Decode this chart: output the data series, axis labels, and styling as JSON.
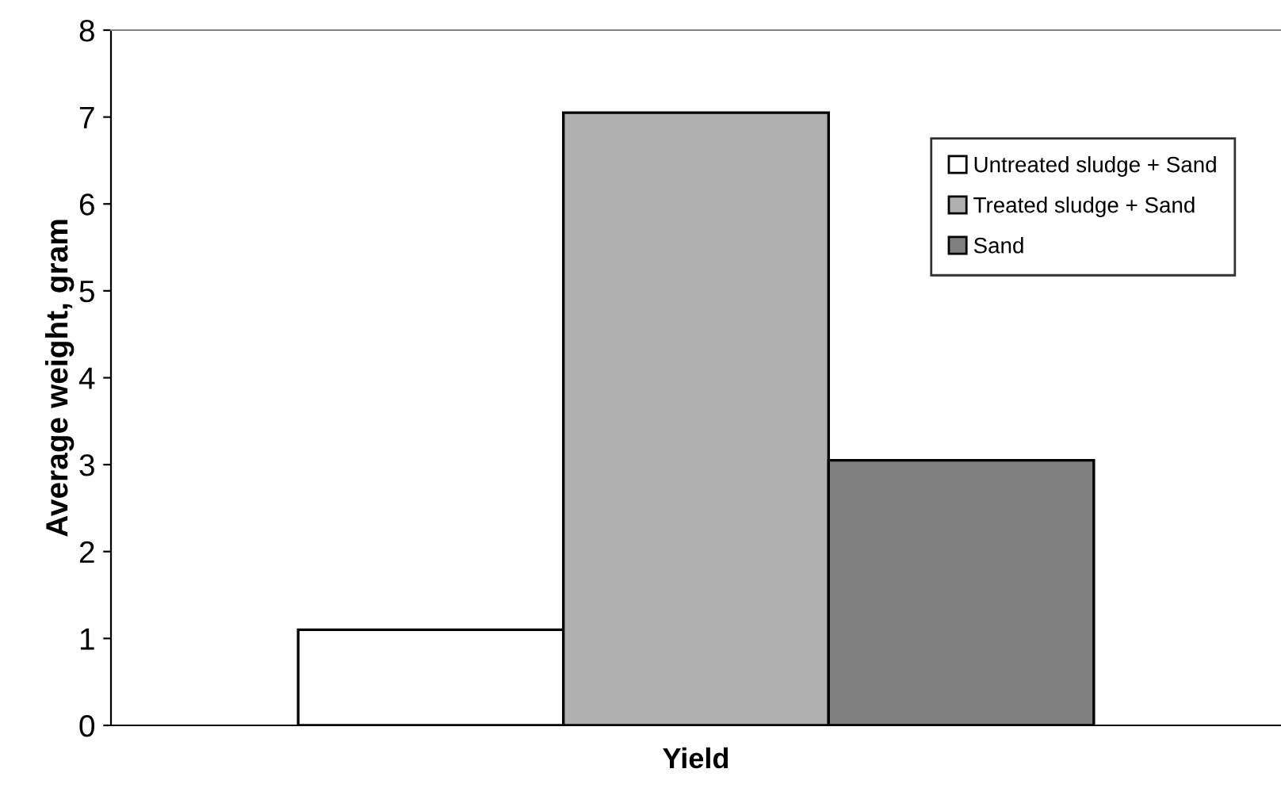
{
  "chart_data": {
    "type": "bar",
    "categories": [
      "Yield"
    ],
    "ylabel": "Average weight, gram",
    "ylim": [
      0,
      8
    ],
    "yticks": [
      0,
      1,
      2,
      3,
      4,
      5,
      6,
      7,
      8
    ],
    "grid": false,
    "legend": "top right",
    "series": [
      {
        "name": "Untreated sludge + Sand",
        "color": "#ffffff",
        "values": [
          1.1
        ]
      },
      {
        "name": "Treated sludge + Sand",
        "color": "#b0b0b0",
        "values": [
          7.05
        ]
      },
      {
        "name": "Sand",
        "color": "#808080",
        "values": [
          3.05
        ]
      }
    ]
  }
}
